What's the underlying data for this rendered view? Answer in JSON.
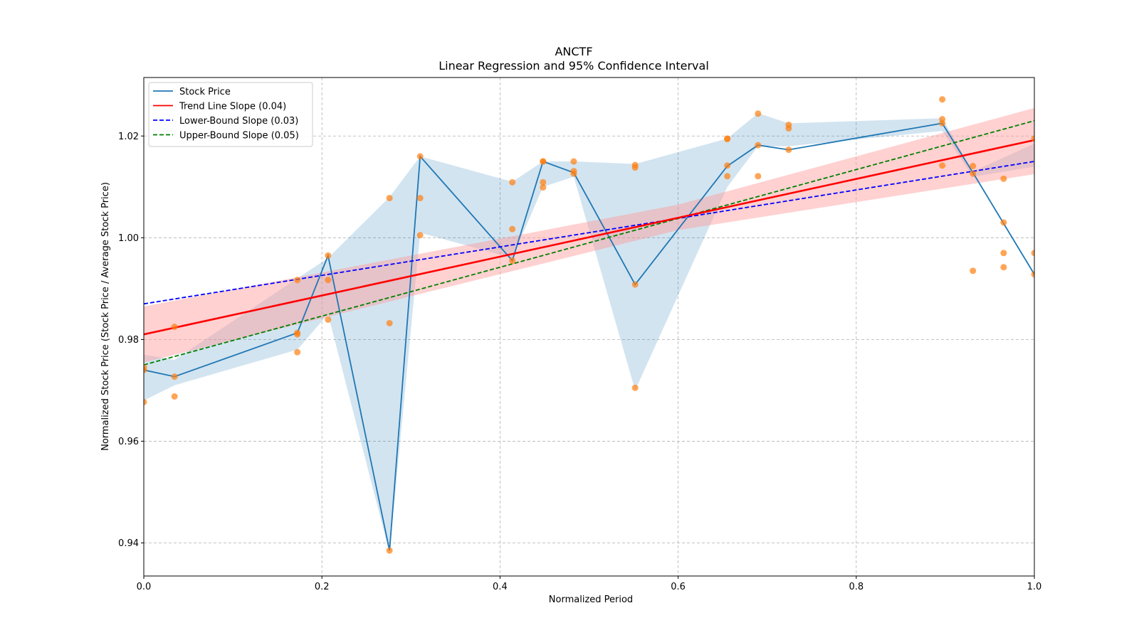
{
  "chart_data": {
    "type": "line",
    "title": "ANCTF",
    "subtitle": "Linear Regression and 95% Confidence Interval",
    "xlabel": "Normalized Period",
    "ylabel": "Normalized Stock Price (Stock Price / Average Stock Price)",
    "xlim": [
      0.0,
      1.0
    ],
    "ylim": [
      0.9335,
      1.0315
    ],
    "xticks": [
      0.0,
      0.2,
      0.4,
      0.6,
      0.8,
      1.0
    ],
    "xtick_labels": [
      "0.0",
      "0.2",
      "0.4",
      "0.6",
      "0.8",
      "1.0"
    ],
    "yticks": [
      0.94,
      0.96,
      0.98,
      1.0,
      1.02
    ],
    "ytick_labels": [
      "0.94",
      "0.96",
      "0.98",
      "1.00",
      "1.02"
    ],
    "grid": true,
    "legend_position": "top-left",
    "legend": [
      {
        "label": "Stock Price",
        "color": "#1f77b4",
        "style": "solid"
      },
      {
        "label": "Trend Line Slope (0.04)",
        "color": "#ff0000",
        "style": "solid"
      },
      {
        "label": "Lower-Bound Slope (0.03)",
        "color": "#0000ff",
        "style": "dashed"
      },
      {
        "label": "Upper-Bound Slope (0.05)",
        "color": "#008000",
        "style": "dashed"
      }
    ],
    "colors": {
      "price": "#1f77b4",
      "band": "#1f77b4",
      "scatter": "#ff7f0e",
      "trend": "#ff0000",
      "trend_ci": "#ff9999",
      "lower": "#0000ff",
      "upper": "#008000"
    },
    "stock_price": {
      "x": [
        0.0,
        0.0345,
        0.1724,
        0.2069,
        0.2759,
        0.3103,
        0.4138,
        0.4483,
        0.4828,
        0.5517,
        0.6552,
        0.6897,
        0.7241,
        0.8966,
        0.931,
        1.0
      ],
      "y": [
        0.974,
        0.9727,
        0.9813,
        0.9965,
        0.9385,
        1.016,
        0.9955,
        1.015,
        1.0128,
        0.9908,
        1.0141,
        1.0182,
        1.0173,
        1.0225,
        1.0128,
        0.9928
      ]
    },
    "band": {
      "x": [
        0.0,
        0.0345,
        0.1724,
        0.2069,
        0.2759,
        0.3103,
        0.4138,
        0.4483,
        0.4828,
        0.5517,
        0.6552,
        0.6897,
        0.7241,
        0.8966,
        0.931,
        1.0
      ],
      "low": [
        0.968,
        0.971,
        0.978,
        0.985,
        0.938,
        1.001,
        0.996,
        1.01,
        1.012,
        0.97,
        1.01,
        1.018,
        1.018,
        1.021,
        1.012,
        1.014
      ],
      "high": [
        0.977,
        0.976,
        0.992,
        0.996,
        1.008,
        1.016,
        1.011,
        1.015,
        1.015,
        1.0145,
        1.0195,
        1.0245,
        1.0225,
        1.0235,
        1.013,
        1.0185
      ]
    },
    "scatter": {
      "x": [
        0.0,
        0.0,
        0.0,
        0.0345,
        0.0345,
        0.0345,
        0.1724,
        0.1724,
        0.1724,
        0.1724,
        0.2069,
        0.2069,
        0.2069,
        0.2759,
        0.2759,
        0.2759,
        0.3103,
        0.3103,
        0.3103,
        0.4138,
        0.4138,
        0.4138,
        0.4483,
        0.4483,
        0.4483,
        0.4483,
        0.4828,
        0.4828,
        0.4828,
        0.5517,
        0.5517,
        0.5517,
        0.5517,
        0.6552,
        0.6552,
        0.6552,
        0.6552,
        0.6897,
        0.6897,
        0.6897,
        0.7241,
        0.7241,
        0.7241,
        0.8966,
        0.8966,
        0.8966,
        0.8966,
        0.931,
        0.931,
        0.931,
        0.9655,
        0.9655,
        0.9655,
        0.9655,
        1.0,
        1.0,
        1.0
      ],
      "y": [
        0.9745,
        0.974,
        0.9677,
        0.9825,
        0.9727,
        0.9688,
        0.9917,
        0.981,
        0.9813,
        0.9775,
        0.9965,
        0.9917,
        0.9839,
        1.0078,
        0.9832,
        0.9385,
        1.016,
        1.0078,
        1.0005,
        1.0109,
        1.0017,
        0.9955,
        1.015,
        1.0109,
        1.0099,
        1.015,
        1.015,
        1.0131,
        1.0126,
        1.0143,
        1.0138,
        0.9908,
        0.9705,
        1.0195,
        1.0142,
        1.0121,
        1.0194,
        1.0244,
        1.0182,
        1.0121,
        1.0222,
        1.0215,
        1.0173,
        1.0272,
        1.0233,
        1.0225,
        1.0142,
        1.0141,
        1.0126,
        0.9935,
        1.0116,
        1.003,
        0.997,
        0.9942,
        1.0195,
        0.997,
        0.9928
      ]
    },
    "trend": {
      "intercept": 0.981,
      "slope": 0.0382
    },
    "trend_ci": {
      "x": [
        0.0,
        0.6,
        1.0
      ],
      "low": [
        0.9755,
        1.0015,
        1.0125
      ],
      "high": [
        0.9865,
        1.0065,
        1.0255
      ]
    },
    "lower_bound": {
      "intercept": 0.987,
      "slope": 0.028
    },
    "upper_bound": {
      "intercept": 0.975,
      "slope": 0.048
    }
  }
}
